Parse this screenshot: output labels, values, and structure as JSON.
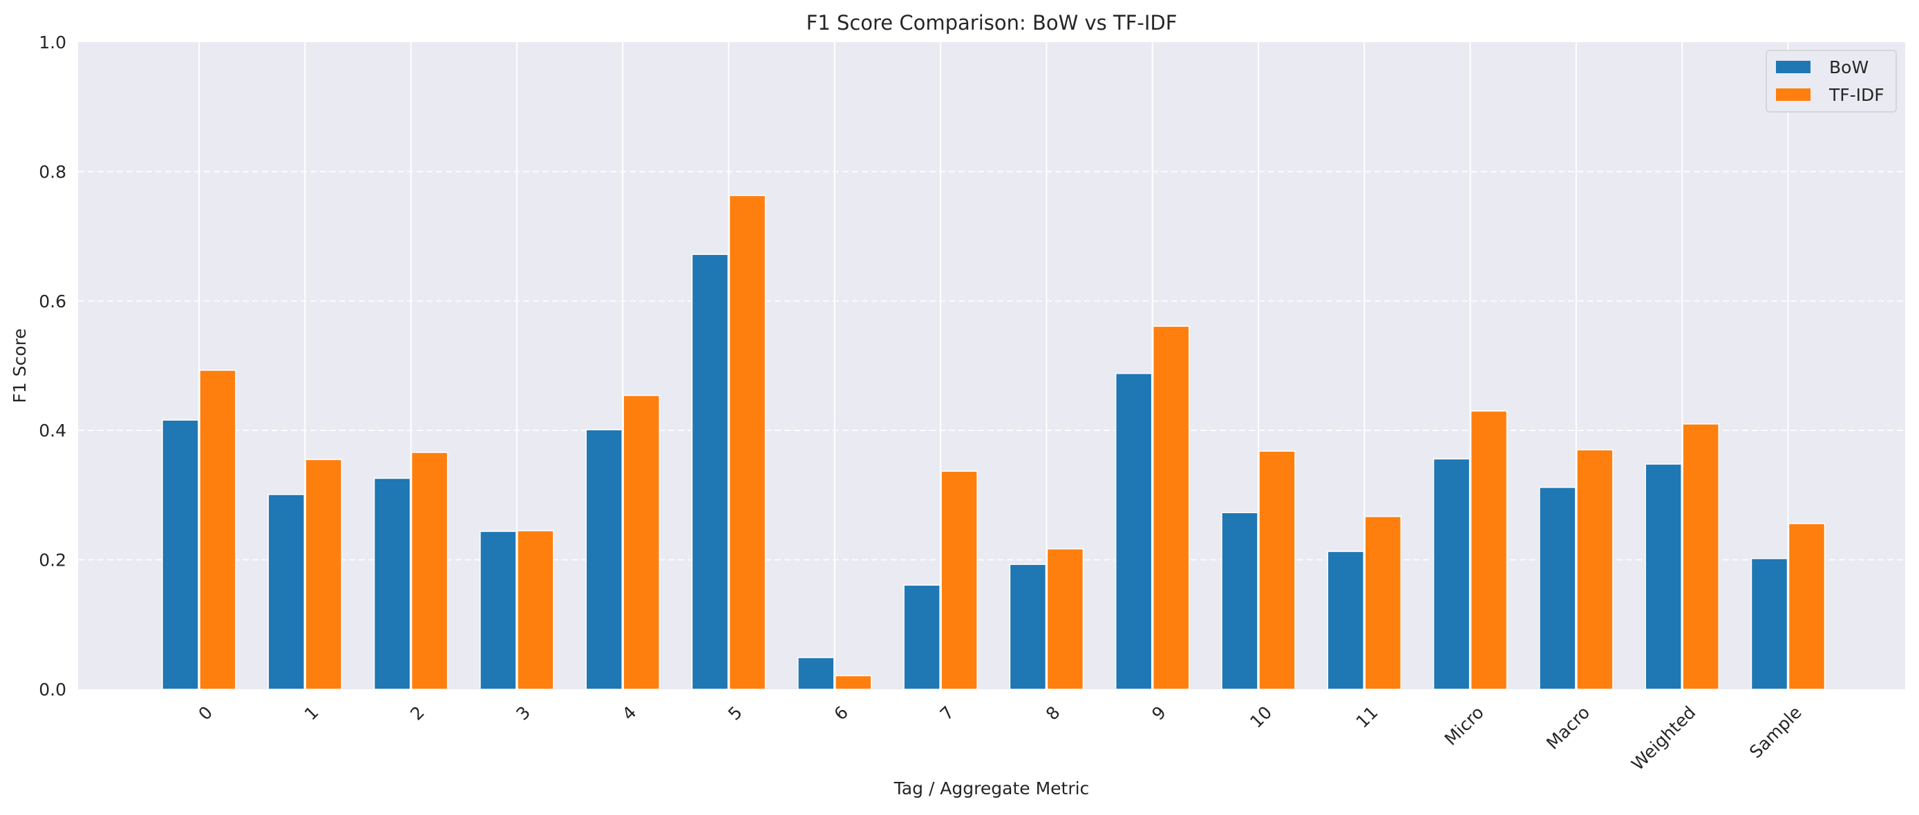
{
  "chart_data": {
    "type": "bar",
    "title": "F1 Score Comparison: BoW vs TF-IDF",
    "xlabel": "Tag / Aggregate Metric",
    "ylabel": "F1 Score",
    "ylim": [
      0,
      1.0
    ],
    "yticks": [
      "0.0",
      "0.2",
      "0.4",
      "0.6",
      "0.8",
      "1.0"
    ],
    "categories": [
      "0",
      "1",
      "2",
      "3",
      "4",
      "5",
      "6",
      "7",
      "8",
      "9",
      "10",
      "11",
      "Micro",
      "Macro",
      "Weighted",
      "Sample"
    ],
    "series": [
      {
        "name": "BoW",
        "color": "#1f77b4",
        "values": [
          0.416,
          0.301,
          0.326,
          0.244,
          0.401,
          0.672,
          0.049,
          0.161,
          0.193,
          0.488,
          0.273,
          0.213,
          0.356,
          0.312,
          0.348,
          0.202
        ]
      },
      {
        "name": "TF-IDF",
        "color": "#ff7f0e",
        "values": [
          0.493,
          0.355,
          0.366,
          0.245,
          0.454,
          0.763,
          0.021,
          0.337,
          0.217,
          0.561,
          0.368,
          0.267,
          0.43,
          0.37,
          0.41,
          0.256
        ]
      }
    ],
    "grid": true,
    "legend_position": "top-right",
    "background_color": "#eaeaf2"
  }
}
